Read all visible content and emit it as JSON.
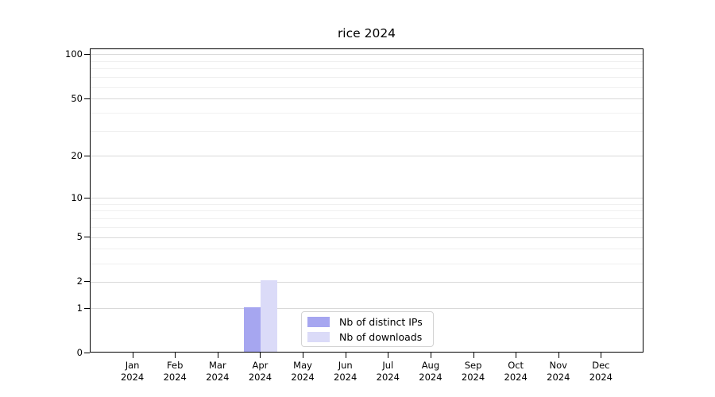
{
  "chart_data": {
    "type": "bar",
    "title": "rice 2024",
    "categories": [
      "Jan",
      "Feb",
      "Mar",
      "Apr",
      "May",
      "Jun",
      "Jul",
      "Aug",
      "Sep",
      "Oct",
      "Nov",
      "Dec"
    ],
    "year_label": "2024",
    "series": [
      {
        "name": "Nb of distinct IPs",
        "color": "#a6a6f0",
        "values": [
          0,
          0,
          0,
          1,
          0,
          0,
          0,
          0,
          0,
          0,
          0,
          0
        ]
      },
      {
        "name": "Nb of downloads",
        "color": "#dbdbf8",
        "values": [
          0,
          0,
          0,
          2,
          0,
          0,
          0,
          0,
          0,
          0,
          0,
          0
        ]
      }
    ],
    "xlabel": "",
    "ylabel": "",
    "yscale": "log1p",
    "y_tick_values": [
      0,
      1,
      2,
      5,
      10,
      20,
      50,
      100
    ],
    "y_minor_gridline_values": [
      3,
      4,
      6,
      7,
      8,
      9,
      30,
      40,
      60,
      70,
      80,
      90
    ],
    "ylim": [
      0,
      109
    ],
    "grid": true,
    "legend_position": "lower center"
  },
  "colors": {
    "major_grid": "#d9d9d9",
    "minor_grid": "#f0f0f0",
    "axis": "#000000",
    "background": "#ffffff"
  }
}
